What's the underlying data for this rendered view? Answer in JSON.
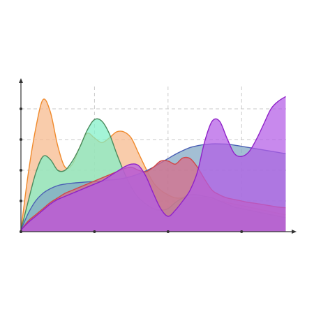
{
  "chart_data": {
    "type": "area",
    "title": "",
    "xlabel": "",
    "ylabel": "",
    "xlim": [
      0,
      3.7
    ],
    "ylim": [
      0,
      5
    ],
    "x_ticks": [
      0,
      1,
      2,
      3
    ],
    "y_ticks": [
      0,
      1,
      2,
      3,
      4
    ],
    "grid": true,
    "legend": "none",
    "series": [
      {
        "color": "#f08a2c",
        "fill": "#f6b88a",
        "x": [
          0,
          0.1,
          0.2,
          0.3,
          0.4,
          0.5,
          0.6,
          0.7,
          0.8,
          0.9,
          1.0,
          1.1,
          1.2,
          1.3,
          1.4,
          1.5,
          1.6,
          1.7,
          1.8,
          1.9,
          2.0,
          2.1,
          2.2,
          2.3,
          2.4,
          2.5,
          2.6,
          2.7,
          2.8,
          2.9,
          3.0,
          3.1,
          3.2,
          3.3,
          3.4,
          3.5,
          3.6
        ],
        "values": [
          0.05,
          1.9,
          3.35,
          4.3,
          3.9,
          2.8,
          2.1,
          2.2,
          2.75,
          3.2,
          3.05,
          2.9,
          3.05,
          3.25,
          3.25,
          3.05,
          2.55,
          2.05,
          1.6,
          1.35,
          1.2,
          1.1,
          1.1,
          1.1,
          1.1,
          1.1,
          1.05,
          1.0,
          0.95,
          0.9,
          0.85,
          0.8,
          0.75,
          0.7,
          0.65,
          0.6,
          0.55
        ]
      },
      {
        "color": "#4a8a5c",
        "fill": "#7ff0c8",
        "x": [
          0,
          0.1,
          0.2,
          0.3,
          0.4,
          0.5,
          0.6,
          0.7,
          0.8,
          0.9,
          1.0,
          1.1,
          1.2,
          1.3,
          1.4,
          1.5,
          1.6,
          1.7,
          1.8,
          1.9,
          2.0,
          2.1,
          2.2,
          2.3,
          2.4,
          2.5,
          2.6,
          2.7,
          2.8,
          2.9,
          3.0,
          3.1,
          3.2,
          3.3,
          3.4,
          3.5,
          3.6
        ],
        "values": [
          0.05,
          1.0,
          1.9,
          2.45,
          2.35,
          2.0,
          2.0,
          2.3,
          2.75,
          3.3,
          3.65,
          3.6,
          3.2,
          2.55,
          1.95,
          1.45,
          1.1,
          0.9,
          0.75,
          0.7,
          0.75,
          0.95,
          1.1,
          1.2,
          1.2,
          1.15,
          1.1,
          1.0,
          0.9,
          0.8,
          0.75,
          0.7,
          0.65,
          0.6,
          0.55,
          0.5,
          0.45
        ]
      },
      {
        "color": "#4b5fb4",
        "fill": "#7fa6c4",
        "x": [
          0,
          0.1,
          0.2,
          0.3,
          0.4,
          0.5,
          0.6,
          0.7,
          0.8,
          0.9,
          1.0,
          1.1,
          1.2,
          1.3,
          1.4,
          1.5,
          1.6,
          1.7,
          1.8,
          1.9,
          2.0,
          2.1,
          2.2,
          2.3,
          2.4,
          2.5,
          2.6,
          2.7,
          2.8,
          2.9,
          3.0,
          3.1,
          3.2,
          3.3,
          3.4,
          3.5,
          3.6
        ],
        "values": [
          0.05,
          0.6,
          1.0,
          1.25,
          1.4,
          1.5,
          1.55,
          1.58,
          1.6,
          1.62,
          1.63,
          1.65,
          1.68,
          1.7,
          1.74,
          1.8,
          1.88,
          1.98,
          2.1,
          2.24,
          2.38,
          2.52,
          2.64,
          2.74,
          2.8,
          2.84,
          2.86,
          2.86,
          2.85,
          2.82,
          2.78,
          2.74,
          2.7,
          2.66,
          2.62,
          2.58,
          2.54
        ]
      },
      {
        "color": "#d04848",
        "fill": "#d86a86",
        "x": [
          0,
          0.1,
          0.2,
          0.3,
          0.4,
          0.5,
          0.6,
          0.7,
          0.8,
          0.9,
          1.0,
          1.1,
          1.2,
          1.3,
          1.4,
          1.5,
          1.6,
          1.7,
          1.8,
          1.9,
          2.0,
          2.1,
          2.2,
          2.3,
          2.4,
          2.5,
          2.6,
          2.7,
          2.8,
          2.9,
          3.0,
          3.1,
          3.2,
          3.3,
          3.4,
          3.5,
          3.6
        ],
        "values": [
          0.05,
          0.35,
          0.55,
          0.75,
          0.95,
          1.1,
          1.25,
          1.35,
          1.45,
          1.55,
          1.65,
          1.75,
          1.85,
          1.95,
          2.05,
          2.1,
          2.0,
          1.95,
          2.1,
          2.3,
          2.3,
          2.2,
          2.4,
          2.38,
          2.1,
          1.7,
          1.35,
          1.2,
          1.1,
          1.05,
          1.0,
          0.95,
          0.92,
          0.88,
          0.84,
          0.8,
          0.78
        ]
      },
      {
        "color": "#8f22c8",
        "fill": "#b35be6",
        "x": [
          0,
          0.1,
          0.2,
          0.3,
          0.4,
          0.5,
          0.6,
          0.7,
          0.8,
          0.9,
          1.0,
          1.1,
          1.2,
          1.3,
          1.4,
          1.5,
          1.6,
          1.7,
          1.8,
          1.9,
          2.0,
          2.1,
          2.2,
          2.3,
          2.4,
          2.5,
          2.6,
          2.7,
          2.8,
          2.9,
          3.0,
          3.1,
          3.2,
          3.3,
          3.4,
          3.5,
          3.6
        ],
        "values": [
          0.05,
          0.3,
          0.5,
          0.7,
          0.9,
          1.05,
          1.15,
          1.25,
          1.35,
          1.45,
          1.55,
          1.65,
          1.8,
          1.95,
          2.1,
          2.2,
          2.15,
          1.8,
          1.25,
          0.75,
          0.5,
          0.7,
          1.0,
          1.35,
          1.95,
          2.95,
          3.6,
          3.6,
          3.05,
          2.55,
          2.45,
          2.6,
          3.0,
          3.5,
          4.0,
          4.25,
          4.4
        ]
      }
    ]
  }
}
